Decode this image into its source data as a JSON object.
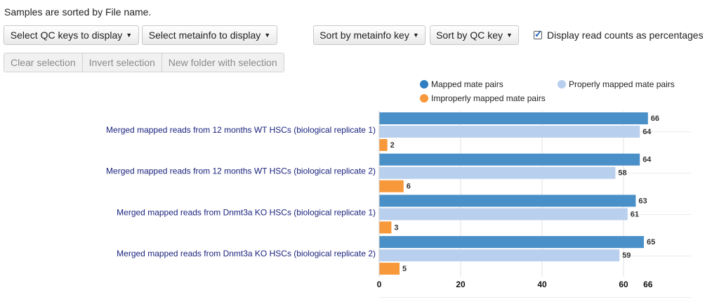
{
  "header": {
    "sort_note": "Samples are sorted by File name."
  },
  "toolbar": {
    "qc_keys_label": "Select QC keys to display",
    "metainfo_label": "Select metainfo to display",
    "sort_metainfo_label": "Sort by metainfo key",
    "sort_qc_label": "Sort by QC key",
    "percent_checkbox_label": "Display read counts as percentages",
    "percent_checked": true,
    "caret": "▼"
  },
  "selection": {
    "clear_label": "Clear selection",
    "invert_label": "Invert selection",
    "new_folder_label": "New folder with selection"
  },
  "chart_data": {
    "type": "bar",
    "orientation": "horizontal",
    "categories": [
      "Merged mapped reads from 12 months WT HSCs (biological replicate 1)",
      "Merged mapped reads from 12 months WT HSCs (biological replicate 2)",
      "Merged mapped reads from Dnmt3a KO HSCs (biological replicate 1)",
      "Merged mapped reads from Dnmt3a KO HSCs (biological replicate 2)"
    ],
    "series": [
      {
        "name": "Mapped mate pairs",
        "color": "#4a90c8",
        "values": [
          66,
          64,
          63,
          65
        ]
      },
      {
        "name": "Properly mapped mate pairs",
        "color": "#b9cfee",
        "values": [
          64,
          58,
          61,
          59
        ]
      },
      {
        "name": "Improperly mapped mate pairs",
        "color": "#f7983a",
        "values": [
          2,
          6,
          3,
          5
        ]
      }
    ],
    "x_ticks": [
      0,
      20,
      40,
      60
    ],
    "x_max_label": "66",
    "xlim": [
      0,
      66
    ],
    "grid": true,
    "legend_position": "top"
  }
}
